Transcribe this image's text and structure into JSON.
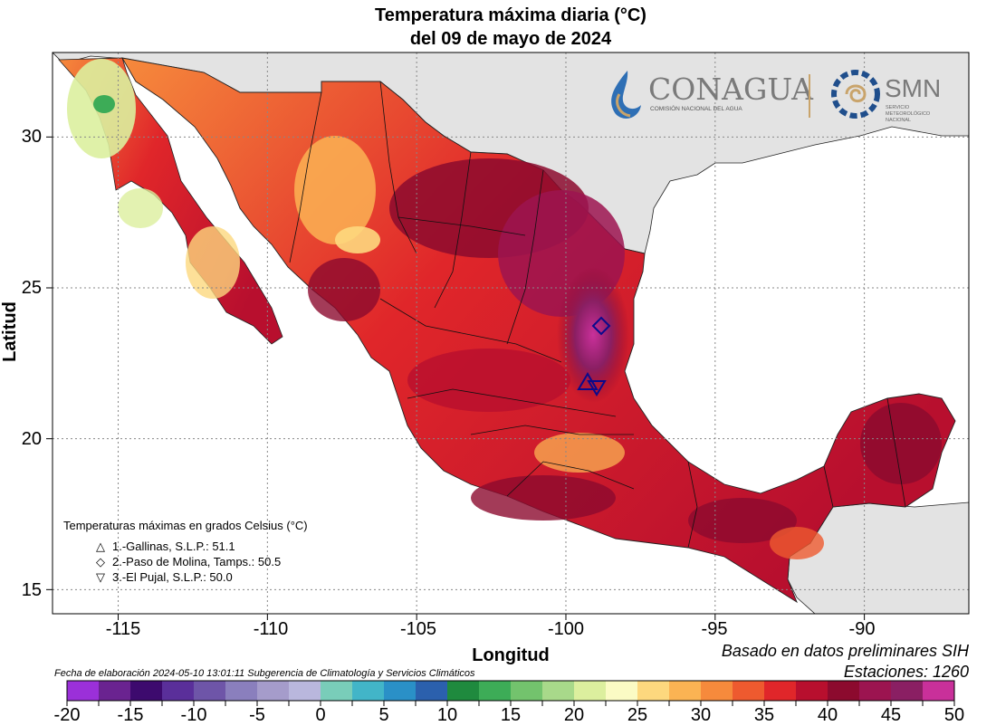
{
  "title": {
    "line1": "Temperatura máxima diaria (°C)",
    "line2": "del 09 de mayo de 2024"
  },
  "axes": {
    "xlabel": "Longitud",
    "ylabel": "Latitud",
    "xticks": [
      -115,
      -110,
      -105,
      -100,
      -95,
      -90
    ],
    "yticks": [
      30,
      25,
      20,
      15
    ],
    "xlim": [
      -117.2,
      -86.5
    ],
    "ylim": [
      14.2,
      32.8
    ],
    "grid": true
  },
  "logos": {
    "conagua": "CONAGUA",
    "conagua_sub": "COMISIÓN NACIONAL DEL AGUA",
    "smn": "SMN",
    "smn_sub": [
      "SERVICIO",
      "METEOROLÓGICO",
      "NACIONAL"
    ]
  },
  "legend": {
    "title": "Temperaturas máximas en grados Celsius (°C)",
    "items": [
      {
        "symbol": "△",
        "text": "1.-Gallinas, S.L.P.: 51.1"
      },
      {
        "symbol": "◇",
        "text": "2.-Paso de Molina, Tamps.: 50.5"
      },
      {
        "symbol": "▽",
        "text": "3.-El Pujal, S.L.P.: 50.0"
      }
    ]
  },
  "notes": {
    "basis": "Basado en datos preliminares SIH",
    "stations": "Estaciones:  1260",
    "elaboration": "Fecha de elaboración 2024-05-10 13:01:11 Subgerencia de Climatología y Servicios Climáticos"
  },
  "colorbar": {
    "ticks": [
      "-20",
      "-15",
      "-10",
      "-5",
      "0",
      "5",
      "10",
      "15",
      "20",
      "25",
      "30",
      "35",
      "40",
      "45",
      "50"
    ],
    "colors": [
      "#9b30d9",
      "#6a2390",
      "#3d0a6e",
      "#5a2f9a",
      "#6e55a8",
      "#8a7fbd",
      "#a59ccb",
      "#b9b7dd",
      "#79cdb9",
      "#42b5c8",
      "#2a90c7",
      "#2b60ad",
      "#1f8a3e",
      "#3dac57",
      "#73c36d",
      "#a8d98a",
      "#dcef9e",
      "#fbfbc4",
      "#fdd87e",
      "#fbb353",
      "#f68a3c",
      "#ee5a2f",
      "#e0262a",
      "#b80f2e",
      "#8c0a2e",
      "#9c1450",
      "#8a1f63",
      "#c9309a"
    ]
  },
  "stations": [
    {
      "name": "Gallinas",
      "lon": -99.2,
      "lat": 21.9,
      "marker": "triangle-up"
    },
    {
      "name": "Paso de Molina",
      "lon": -98.8,
      "lat": 23.7,
      "marker": "diamond"
    },
    {
      "name": "El Pujal",
      "lon": -98.9,
      "lat": 21.8,
      "marker": "triangle-down"
    }
  ],
  "map_colors": {
    "land_outside": "#e3e3e3",
    "ocean": "#ffffff",
    "grid": "#888888"
  }
}
